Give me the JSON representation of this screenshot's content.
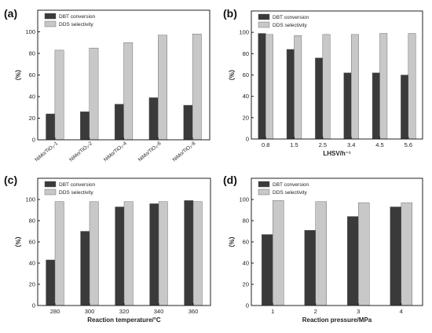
{
  "chart_data": [
    {
      "panel": "(a)",
      "type": "bar",
      "categories": [
        "NiMo/TiO₂-1",
        "NiMo/TiO₂-2",
        "NiMo/TiO₂-4",
        "NiMo/TiO₂-6",
        "NiMo/TiO₂-8"
      ],
      "series": [
        {
          "name": "DBT conversion",
          "values": [
            24,
            26,
            33,
            39,
            32
          ],
          "color": "#3a3a3a"
        },
        {
          "name": "DDS selectivity",
          "values": [
            83,
            85,
            90,
            97,
            98
          ],
          "color": "#c8c8c8"
        }
      ],
      "xlabel": "",
      "ylabel": "（%）",
      "ylim": [
        0,
        120
      ],
      "yticks": [
        0,
        20,
        40,
        60,
        80,
        100
      ],
      "legend": "top-left",
      "rotated_categories": true
    },
    {
      "panel": "(b)",
      "type": "bar",
      "categories": [
        "0.8",
        "1.5",
        "2.5",
        "3.4",
        "4.5",
        "5.6"
      ],
      "series": [
        {
          "name": "DBT conversion",
          "values": [
            99,
            84,
            76,
            62,
            62,
            60
          ],
          "color": "#3a3a3a"
        },
        {
          "name": "DDS selectivity",
          "values": [
            98,
            97,
            98,
            98,
            99,
            99
          ],
          "color": "#c8c8c8"
        }
      ],
      "xlabel": "LHSV/h⁻¹",
      "ylabel": "（%）",
      "ylim": [
        0,
        120
      ],
      "yticks": [
        0,
        20,
        40,
        60,
        80,
        100
      ],
      "legend": "top-left",
      "rotated_categories": false
    },
    {
      "panel": "(c)",
      "type": "bar",
      "categories": [
        "280",
        "300",
        "320",
        "340",
        "360"
      ],
      "series": [
        {
          "name": "DBT conversion",
          "values": [
            43,
            70,
            93,
            96,
            99
          ],
          "color": "#3a3a3a"
        },
        {
          "name": "DDS selectivity",
          "values": [
            98,
            98,
            98,
            98,
            98
          ],
          "color": "#c8c8c8"
        }
      ],
      "xlabel": "Reaction temperature/°C",
      "ylabel": "（%）",
      "ylim": [
        0,
        120
      ],
      "yticks": [
        0,
        20,
        40,
        60,
        80,
        100
      ],
      "legend": "top-left",
      "rotated_categories": false
    },
    {
      "panel": "(d)",
      "type": "bar",
      "categories": [
        "1",
        "2",
        "3",
        "4"
      ],
      "series": [
        {
          "name": "DBT conversion",
          "values": [
            67,
            71,
            84,
            93
          ],
          "color": "#3a3a3a"
        },
        {
          "name": "DDS selectivity",
          "values": [
            99,
            98,
            97,
            97
          ],
          "color": "#c8c8c8"
        }
      ],
      "xlabel": "Reaction pressure/MPa",
      "ylabel": "（%）",
      "ylim": [
        0,
        120
      ],
      "yticks": [
        0,
        20,
        40,
        60,
        80,
        100
      ],
      "legend": "top-left",
      "rotated_categories": false
    }
  ]
}
